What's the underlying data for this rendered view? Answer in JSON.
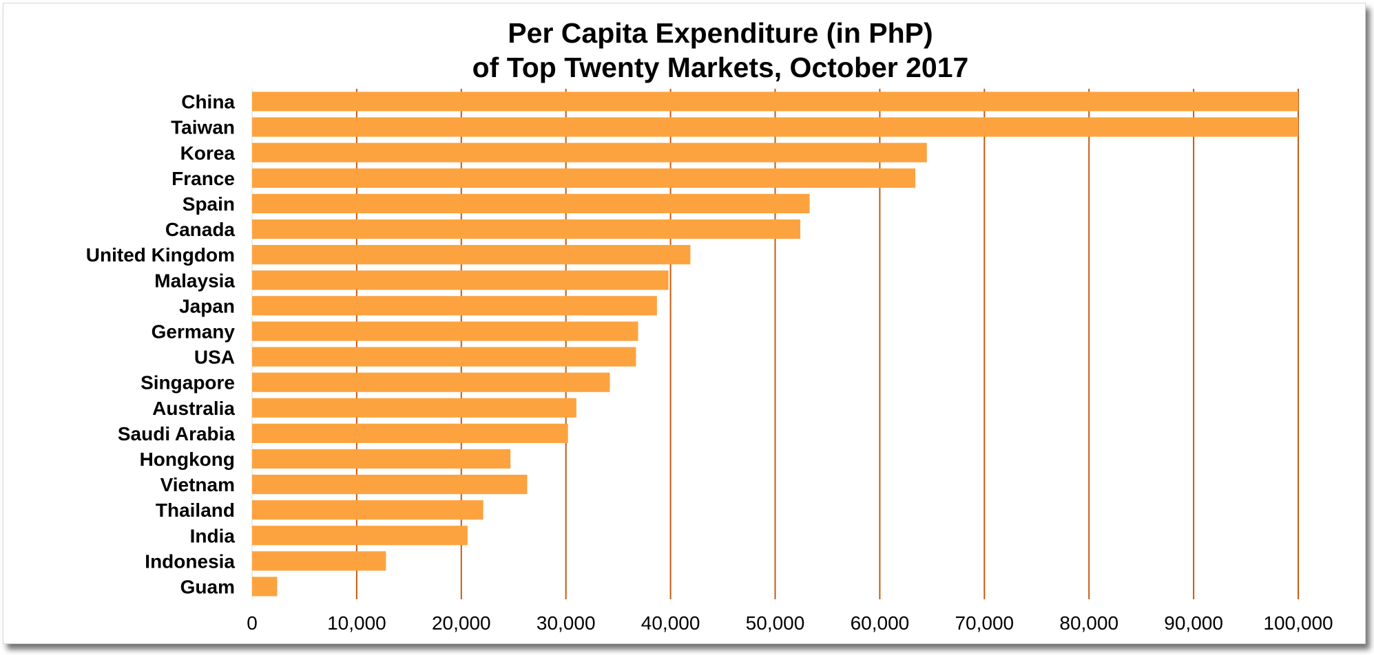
{
  "chart_data": {
    "type": "bar",
    "orientation": "horizontal",
    "title": "Per Capita Expenditure (in PhP)",
    "subtitle": "of Top Twenty Markets, October 2017",
    "xlabel": "",
    "ylabel": "",
    "xlim": [
      0,
      100000
    ],
    "ticks": [
      0,
      10000,
      20000,
      30000,
      40000,
      50000,
      60000,
      70000,
      80000,
      90000,
      100000
    ],
    "tick_labels": [
      "0",
      "10,000",
      "20,000",
      "30,000",
      "40,000",
      "50,000",
      "60,000",
      "70,000",
      "80,000",
      "90,000",
      "100,000"
    ],
    "grid": "vertical",
    "legend": "none",
    "categories": [
      "China",
      "Taiwan",
      "Korea",
      "France",
      "Spain",
      "Canada",
      "United Kingdom",
      "Malaysia",
      "Japan",
      "Germany",
      "USA",
      "Singapore",
      "Australia",
      "Saudi Arabia",
      "Hongkong",
      "Vietnam",
      "Thailand",
      "India",
      "Indonesia",
      "Guam"
    ],
    "values": [
      100000,
      100000,
      64500,
      63400,
      53300,
      52400,
      41900,
      39800,
      38700,
      36900,
      36700,
      34200,
      31000,
      30200,
      24700,
      26300,
      22100,
      20600,
      12800,
      2400
    ],
    "colors": {
      "bar": "#FCA33F",
      "grid": "#C55A11",
      "text": "#000000"
    }
  }
}
